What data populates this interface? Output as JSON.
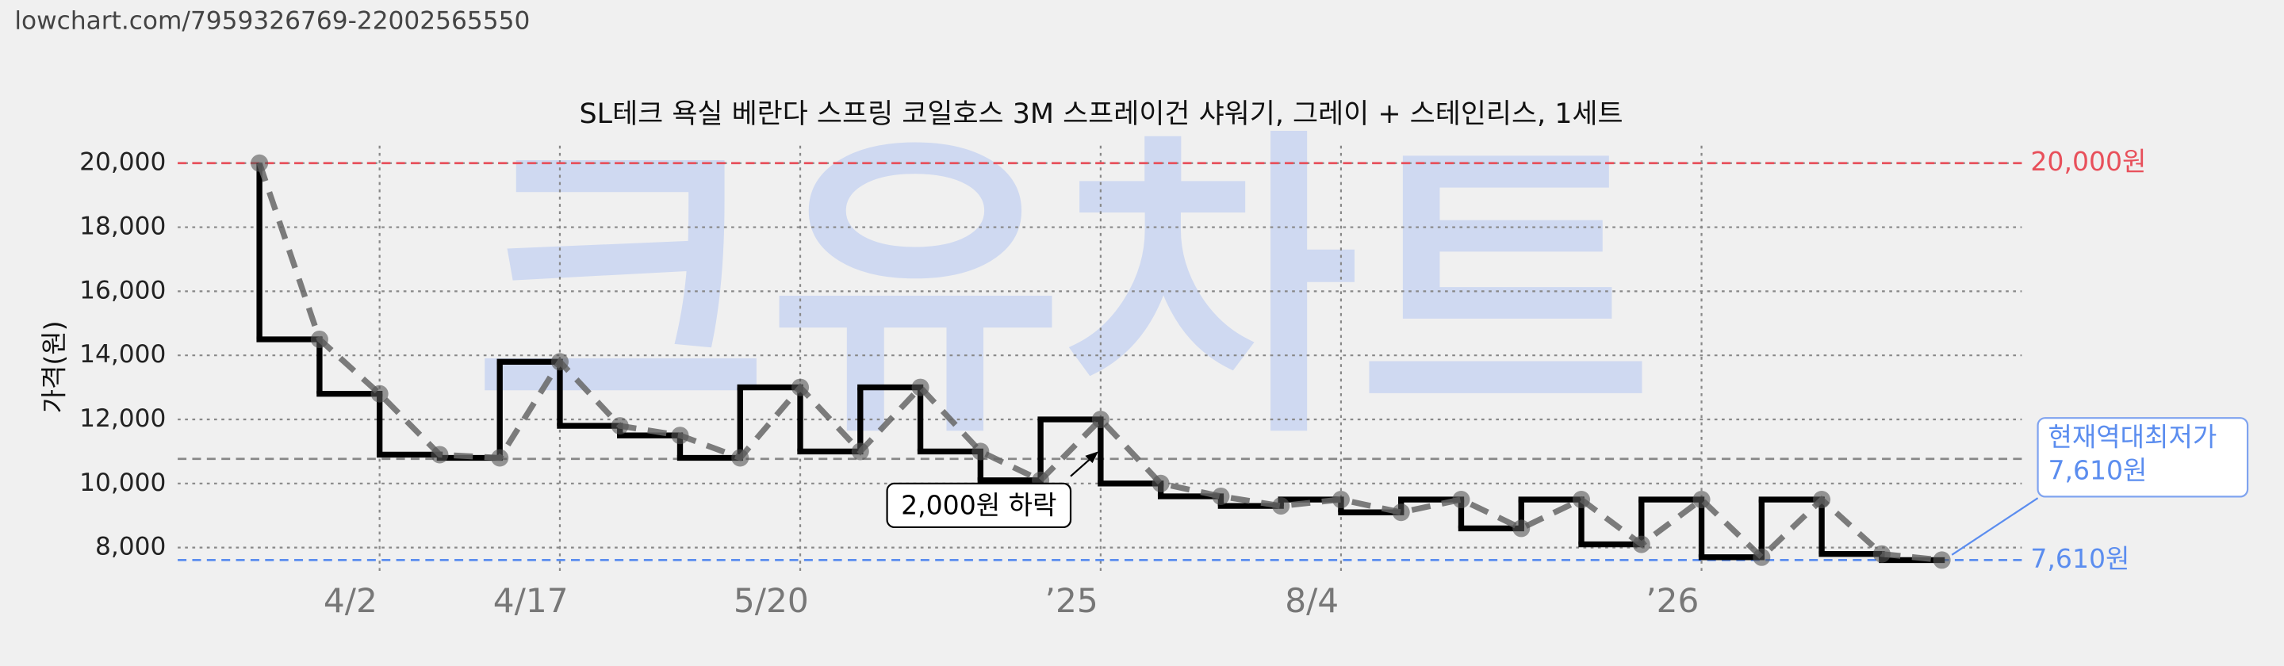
{
  "url": "lowchart.com/7959326769-22002565550",
  "chart_data": {
    "type": "line",
    "title": "SL테크 욕실 베란다 스프링 코일호스 3M 스프레이건 샤워기, 그레이 + 스테인리스, 1세트",
    "watermark": "크유차트",
    "y_label": "가격(원)",
    "x": [
      0,
      1,
      2,
      3,
      4,
      5,
      6,
      7,
      8,
      9,
      10,
      11,
      12,
      13,
      14,
      15,
      16,
      17,
      18,
      19,
      20,
      21,
      22,
      23,
      24,
      25,
      26,
      27,
      28
    ],
    "values": [
      20000,
      14500,
      12800,
      10900,
      10800,
      13800,
      11800,
      11500,
      10800,
      13000,
      11000,
      13000,
      11000,
      10100,
      12000,
      10000,
      9600,
      9300,
      9500,
      9100,
      9500,
      8600,
      9500,
      8100,
      9500,
      7700,
      9500,
      7800,
      7610
    ],
    "xlim": [
      -1.36,
      29.33
    ],
    "xticks": [
      {
        "value": 2,
        "label": "4/2"
      },
      {
        "value": 5,
        "label": "4/17"
      },
      {
        "value": 9,
        "label": "5/20"
      },
      {
        "value": 14,
        "label": "’25"
      },
      {
        "value": 18,
        "label": "8/4"
      },
      {
        "value": 24,
        "label": "’26"
      }
    ],
    "ylim": [
      7150,
      21000
    ],
    "yticks": [
      {
        "value": 8000,
        "label": "8,000"
      },
      {
        "value": 10000,
        "label": "10,000"
      },
      {
        "value": 12000,
        "label": "12,000"
      },
      {
        "value": 14000,
        "label": "14,000"
      },
      {
        "value": 16000,
        "label": "16,000"
      },
      {
        "value": 18000,
        "label": "18,000"
      },
      {
        "value": 20000,
        "label": "20,000"
      }
    ],
    "grid": true,
    "reference_lines": [
      {
        "value": 20000,
        "label": "20,000원",
        "color": "#e8505b"
      },
      {
        "value": 7610,
        "label": "7,610원",
        "color": "#5b8def"
      },
      {
        "value": 10770,
        "color": "#888888"
      }
    ],
    "annotations": [
      {
        "text": "2,000원 하락"
      },
      {
        "text": [
          "현재역대최저가",
          "7,610원"
        ]
      }
    ]
  }
}
